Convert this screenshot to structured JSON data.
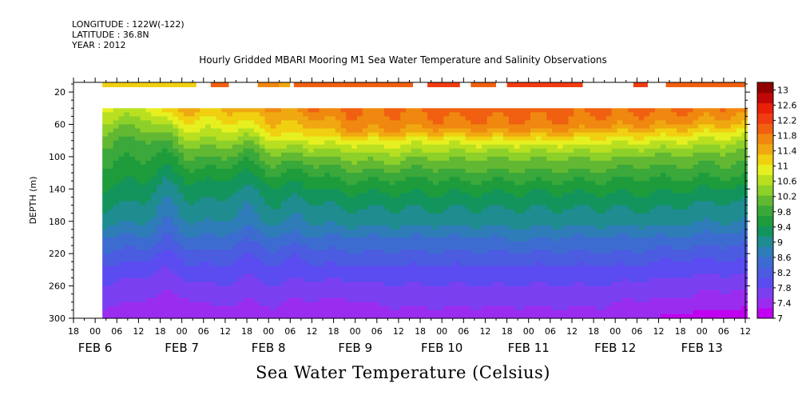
{
  "header": {
    "longitude": "LONGITUDE : 122W(-122)",
    "latitude": "LATITUDE : 36.8N",
    "year": "YEAR : 2012"
  },
  "title": "Hourly Gridded MBARI Mooring M1 Sea Water Temperature and Salinity Observations",
  "x_title": "Sea Water Temperature (Celsius)",
  "colors": {
    "scale": [
      "#c000f0",
      "#9a2cf0",
      "#7a40f0",
      "#5a4cf0",
      "#4b5ce0",
      "#3d6cd0",
      "#2e7cb8",
      "#1f8c90",
      "#12945c",
      "#1e9c3c",
      "#3aa83a",
      "#62b832",
      "#8ed02a",
      "#b8e020",
      "#e6f020",
      "#f0d010",
      "#f0a810",
      "#f08810",
      "#f06010",
      "#f03c10",
      "#e82008",
      "#c00808",
      "#900000"
    ],
    "background": "#ffffff",
    "blank": "#ffffff"
  },
  "chart_data": {
    "type": "heatmap",
    "title": "Hourly Gridded MBARI Mooring M1 Sea Water Temperature and Salinity Observations",
    "xlabel": "",
    "ylabel": "DEPTH (m)",
    "x_time_ticks": [
      "18",
      "00",
      "06",
      "12",
      "18",
      "00",
      "06",
      "12",
      "18",
      "00",
      "06",
      "12",
      "18",
      "00",
      "06",
      "12",
      "18",
      "00",
      "06",
      "12",
      "18",
      "00",
      "06",
      "12",
      "18",
      "00",
      "06",
      "12",
      "18",
      "00",
      "06",
      "12"
    ],
    "x_day_labels": [
      "FEB  6",
      "FEB  7",
      "FEB  8",
      "FEB  9",
      "FEB 10",
      "FEB 11",
      "FEB 12",
      "FEB 13"
    ],
    "y_ticks": [
      20,
      60,
      100,
      140,
      180,
      220,
      260,
      300
    ],
    "ylim": [
      300,
      8
    ],
    "xlim_hours": [
      -6,
      180
    ],
    "data_start_hour": 2,
    "colorbar": {
      "levels": [
        7,
        7.2,
        7.4,
        7.6,
        7.8,
        8,
        8.2,
        8.4,
        8.6,
        8.8,
        9,
        9.2,
        9.4,
        9.6,
        9.8,
        10,
        10.2,
        10.4,
        10.6,
        10.8,
        11,
        11.2,
        11.4,
        11.6,
        11.8,
        12,
        12.2,
        12.4,
        12.6,
        12.8,
        13
      ],
      "tick_labels": [
        "13",
        "12.6",
        "12.2",
        "11.8",
        "11.4",
        "11",
        "10.6",
        "10.2",
        "9.8",
        "9.4",
        "9",
        "8.6",
        "8.2",
        "7.8",
        "7.4",
        "7"
      ],
      "min": 7,
      "max": 13.2
    },
    "surface_segments": [
      {
        "start": 2,
        "end": 20,
        "value": 11.1
      },
      {
        "start": 20,
        "end": 28,
        "value": 11.3
      },
      {
        "start": 32,
        "end": 37,
        "value": 11.9
      },
      {
        "start": 45,
        "end": 51,
        "value": 11.8
      },
      {
        "start": 51,
        "end": 54,
        "value": 11.5
      },
      {
        "start": 55,
        "end": 88,
        "value": 12.1
      },
      {
        "start": 92,
        "end": 101,
        "value": 12.3
      },
      {
        "start": 104,
        "end": 111,
        "value": 12.1
      },
      {
        "start": 114,
        "end": 135,
        "value": 12.2
      },
      {
        "start": 149,
        "end": 153,
        "value": 12.2
      },
      {
        "start": 158,
        "end": 180,
        "value": 12.0
      }
    ],
    "profile_depths": [
      40,
      50,
      60,
      70,
      80,
      90,
      100,
      120,
      140,
      160,
      180,
      200,
      220,
      240,
      260,
      280,
      300
    ],
    "profiles": [
      {
        "hour": 2,
        "temps": [
          10.8,
          10.6,
          10.4,
          10.2,
          10.0,
          9.9,
          9.8,
          9.6,
          9.4,
          9.2,
          9.0,
          8.6,
          8.3,
          8.0,
          7.8,
          7.6,
          7.4
        ]
      },
      {
        "hour": 14,
        "temps": [
          10.7,
          10.5,
          10.3,
          10.1,
          9.9,
          9.8,
          9.7,
          9.5,
          9.3,
          9.1,
          8.9,
          8.6,
          8.2,
          7.9,
          7.7,
          7.5,
          7.4
        ]
      },
      {
        "hour": 20,
        "temps": [
          11.4,
          11.0,
          10.6,
          10.3,
          10.0,
          9.8,
          9.6,
          9.3,
          9.0,
          8.8,
          8.6,
          8.3,
          8.0,
          7.8,
          7.6,
          7.4,
          7.3
        ]
      },
      {
        "hour": 26,
        "temps": [
          11.4,
          11.2,
          11.0,
          10.7,
          10.4,
          10.2,
          10.0,
          9.6,
          9.3,
          9.1,
          8.9,
          8.6,
          8.2,
          8.0,
          7.7,
          7.5,
          7.3
        ]
      },
      {
        "hour": 34,
        "temps": [
          11.3,
          11.1,
          10.9,
          10.7,
          10.5,
          10.2,
          10.0,
          9.6,
          9.3,
          9.1,
          8.9,
          8.6,
          8.3,
          8.0,
          7.8,
          7.6,
          7.4
        ]
      },
      {
        "hour": 42,
        "temps": [
          11.5,
          11.2,
          11.0,
          10.6,
          10.3,
          10.0,
          9.8,
          9.4,
          9.1,
          8.9,
          8.7,
          8.4,
          8.1,
          7.9,
          7.7,
          7.5,
          7.4
        ]
      },
      {
        "hour": 50,
        "temps": [
          11.6,
          11.4,
          11.3,
          11.1,
          10.8,
          10.5,
          10.2,
          9.8,
          9.4,
          9.2,
          9.0,
          8.6,
          8.3,
          8.0,
          7.8,
          7.6,
          7.4
        ]
      },
      {
        "hour": 56,
        "temps": [
          11.7,
          11.5,
          11.3,
          11.1,
          10.8,
          10.4,
          10.1,
          9.6,
          9.3,
          9.0,
          8.8,
          8.5,
          8.1,
          7.9,
          7.7,
          7.5,
          7.3
        ]
      },
      {
        "hour": 60,
        "temps": [
          11.8,
          11.6,
          11.4,
          11.1,
          10.8,
          10.5,
          10.2,
          9.7,
          9.4,
          9.1,
          8.9,
          8.6,
          8.2,
          8.0,
          7.7,
          7.5,
          7.3
        ]
      },
      {
        "hour": 70,
        "temps": [
          11.9,
          11.8,
          11.7,
          11.5,
          11.0,
          10.6,
          10.3,
          9.9,
          9.5,
          9.2,
          9.0,
          8.6,
          8.3,
          8.0,
          7.7,
          7.5,
          7.3
        ]
      },
      {
        "hour": 80,
        "temps": [
          11.9,
          11.8,
          11.7,
          11.5,
          11.0,
          10.7,
          10.4,
          9.9,
          9.5,
          9.2,
          9.0,
          8.6,
          8.3,
          8.0,
          7.8,
          7.6,
          7.4
        ]
      },
      {
        "hour": 90,
        "temps": [
          11.9,
          11.8,
          11.7,
          11.4,
          10.9,
          10.6,
          10.3,
          9.8,
          9.5,
          9.2,
          9.0,
          8.6,
          8.3,
          8.0,
          7.8,
          7.6,
          7.4
        ]
      },
      {
        "hour": 100,
        "temps": [
          12.0,
          11.9,
          11.8,
          11.4,
          10.9,
          10.6,
          10.3,
          9.9,
          9.5,
          9.2,
          9.0,
          8.6,
          8.3,
          8.0,
          7.8,
          7.6,
          7.4
        ]
      },
      {
        "hour": 110,
        "temps": [
          12.0,
          11.9,
          11.8,
          11.5,
          11.0,
          10.6,
          10.3,
          9.9,
          9.5,
          9.2,
          9.0,
          8.6,
          8.3,
          8.0,
          7.8,
          7.6,
          7.4
        ]
      },
      {
        "hour": 120,
        "temps": [
          12.0,
          11.9,
          11.8,
          11.5,
          11.0,
          10.6,
          10.3,
          9.9,
          9.5,
          9.2,
          9.0,
          8.7,
          8.3,
          8.0,
          7.8,
          7.6,
          7.4
        ]
      },
      {
        "hour": 130,
        "temps": [
          12.0,
          11.9,
          11.8,
          11.5,
          11.0,
          10.6,
          10.3,
          9.9,
          9.5,
          9.2,
          9.0,
          8.6,
          8.3,
          8.0,
          7.8,
          7.6,
          7.4
        ]
      },
      {
        "hour": 140,
        "temps": [
          11.9,
          11.8,
          11.7,
          11.3,
          10.9,
          10.6,
          10.3,
          9.9,
          9.5,
          9.2,
          9.0,
          8.6,
          8.3,
          8.0,
          7.8,
          7.6,
          7.4
        ]
      },
      {
        "hour": 150,
        "temps": [
          11.9,
          11.8,
          11.6,
          11.3,
          10.9,
          10.5,
          10.2,
          9.8,
          9.5,
          9.2,
          9.0,
          8.6,
          8.3,
          8.0,
          7.7,
          7.5,
          7.4
        ]
      },
      {
        "hour": 160,
        "temps": [
          11.9,
          11.8,
          11.6,
          11.2,
          10.8,
          10.5,
          10.2,
          9.8,
          9.5,
          9.2,
          9.0,
          8.6,
          8.2,
          7.9,
          7.7,
          7.5,
          7.2
        ]
      },
      {
        "hour": 170,
        "temps": [
          11.8,
          11.6,
          11.4,
          11.0,
          10.7,
          10.4,
          10.1,
          9.8,
          9.4,
          9.1,
          8.9,
          8.5,
          8.2,
          7.9,
          7.6,
          7.4,
          7.1
        ]
      },
      {
        "hour": 180,
        "temps": [
          11.8,
          11.6,
          11.3,
          10.9,
          10.6,
          10.3,
          10.1,
          9.8,
          9.4,
          9.1,
          8.9,
          8.5,
          8.2,
          7.9,
          7.6,
          7.4,
          7.1
        ]
      }
    ]
  }
}
